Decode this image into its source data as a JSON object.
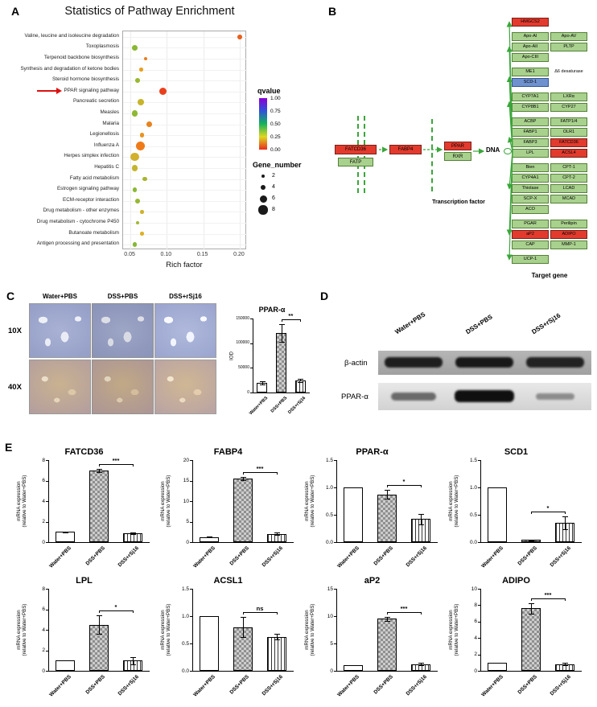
{
  "panels": {
    "a": "A",
    "b": "B",
    "c": "C",
    "d": "D",
    "e": "E"
  },
  "panelB": {
    "membrane": [
      {
        "label": "FATCD36",
        "type": "red"
      },
      {
        "label": "FABP4",
        "type": "red"
      },
      {
        "label": "FATP",
        "type": "green"
      }
    ],
    "tf": [
      {
        "label": "PPAR",
        "type": "red"
      },
      {
        "label": "RXR",
        "type": "green"
      }
    ],
    "dna": "DNA",
    "tf_caption": "Transcription factor",
    "target_caption": "Target gene",
    "groups": [
      {
        "rows": [
          [
            {
              "label": "HMGCS2",
              "type": "red"
            }
          ]
        ]
      },
      {
        "rows": [
          [
            {
              "label": "Apo-AI",
              "type": "green"
            },
            {
              "label": "Apo-AV",
              "type": "green"
            }
          ],
          [
            {
              "label": "Apo-AII",
              "type": "green"
            },
            {
              "label": "PLTP",
              "type": "green"
            }
          ],
          [
            {
              "label": "Apo-CIII",
              "type": "green"
            }
          ]
        ]
      },
      {
        "rows": [
          [
            {
              "label": "ME1",
              "type": "green"
            },
            {
              "label": "Δ6 desaturase",
              "type": "plain"
            }
          ],
          [
            {
              "label": "SCD-1",
              "type": "blue"
            }
          ]
        ]
      },
      {
        "rows": [
          [
            {
              "label": "CYP7A1",
              "type": "green"
            },
            {
              "label": "LXRα",
              "type": "green"
            }
          ],
          [
            {
              "label": "CYP8B1",
              "type": "green"
            },
            {
              "label": "CYP27",
              "type": "green"
            }
          ]
        ]
      },
      {
        "rows": [
          [
            {
              "label": "ACBP",
              "type": "green"
            },
            {
              "label": "FATP1/4",
              "type": "green"
            }
          ],
          [
            {
              "label": "FABP1",
              "type": "green"
            },
            {
              "label": "OLR1",
              "type": "green"
            }
          ],
          [
            {
              "label": "FABP3",
              "type": "green"
            },
            {
              "label": "FATCD36",
              "type": "red"
            }
          ],
          [
            {
              "label": "LPL",
              "type": "green"
            },
            {
              "label": "ACSL4",
              "type": "red"
            }
          ]
        ]
      },
      {
        "rows": [
          [
            {
              "label": "Bien",
              "type": "green"
            },
            {
              "label": "CPT-1",
              "type": "green"
            }
          ],
          [
            {
              "label": "CYP4A1",
              "type": "green"
            },
            {
              "label": "CPT-2",
              "type": "green"
            }
          ],
          [
            {
              "label": "Thiolase",
              "type": "green"
            },
            {
              "label": "LCAD",
              "type": "green"
            }
          ],
          [
            {
              "label": "SCP-X",
              "type": "green"
            },
            {
              "label": "MCAD",
              "type": "green"
            }
          ],
          [
            {
              "label": "ACO",
              "type": "green"
            }
          ]
        ]
      },
      {
        "rows": [
          [
            {
              "label": "PGAR",
              "type": "green"
            },
            {
              "label": "Perilipin",
              "type": "green"
            }
          ],
          [
            {
              "label": "aP2",
              "type": "red"
            },
            {
              "label": "ADIPO",
              "type": "red"
            }
          ],
          [
            {
              "label": "CAP",
              "type": "green"
            },
            {
              "label": "MMP-1",
              "type": "green"
            }
          ]
        ]
      },
      {
        "rows": [
          [
            {
              "label": "UCP-1",
              "type": "green"
            }
          ]
        ]
      }
    ]
  },
  "panelC": {
    "col_headers": [
      "Water+PBS",
      "DSS+PBS",
      "DSS+rSj16"
    ],
    "row_labels": [
      "10X",
      "40X"
    ]
  },
  "panelD": {
    "lane_labels": [
      "Water+PBS",
      "DSS+PBS",
      "DSS+rSj16"
    ],
    "blot_labels": [
      "β-actin",
      "PPAR-α"
    ]
  },
  "chart_data": [
    {
      "id": "pathway-enrichment",
      "type": "scatter",
      "title": "Statistics of Pathway Enrichment",
      "xlabel": "Rich factor",
      "xlim": [
        0.04,
        0.21
      ],
      "xticks": [
        "0.05",
        "0.10",
        "0.15",
        "0.20"
      ],
      "legend": {
        "qvalue_title": "qvalue",
        "qvalue_ticks": [
          "1.00",
          "0.75",
          "0.50",
          "0.25",
          "0.00"
        ],
        "gene_number_title": "Gene_number",
        "gene_number_sizes": [
          2,
          4,
          6,
          8
        ]
      },
      "highlight": "PPAR signaling pathway",
      "points": [
        {
          "pathway": "Valine, leucine and isoleucine degradation",
          "rich_factor": 0.2,
          "gene_number": 3,
          "qvalue": 0.2,
          "color": "#e8601c"
        },
        {
          "pathway": "Toxoplasmosis",
          "rich_factor": 0.056,
          "gene_number": 4,
          "qvalue": 0.45,
          "color": "#8ab833"
        },
        {
          "pathway": "Terpenoid backbone biosynthesis",
          "rich_factor": 0.071,
          "gene_number": 2,
          "qvalue": 0.15,
          "color": "#e87d1e"
        },
        {
          "pathway": "Synthesis and degradation of ketone bodies",
          "rich_factor": 0.065,
          "gene_number": 2,
          "qvalue": 0.18,
          "color": "#e8a01e"
        },
        {
          "pathway": "Steroid hormone biosynthesis",
          "rich_factor": 0.06,
          "gene_number": 3,
          "qvalue": 0.4,
          "color": "#9ab832"
        },
        {
          "pathway": "PPAR signaling pathway",
          "rich_factor": 0.095,
          "gene_number": 6,
          "qvalue": 0.02,
          "color": "#e8401c"
        },
        {
          "pathway": "Pancreatic secretion",
          "rich_factor": 0.064,
          "gene_number": 5,
          "qvalue": 0.3,
          "color": "#c8b42a"
        },
        {
          "pathway": "Measles",
          "rich_factor": 0.056,
          "gene_number": 5,
          "qvalue": 0.42,
          "color": "#8fb832"
        },
        {
          "pathway": "Malaria",
          "rich_factor": 0.076,
          "gene_number": 4,
          "qvalue": 0.12,
          "color": "#e8821e"
        },
        {
          "pathway": "Legionellosis",
          "rich_factor": 0.066,
          "gene_number": 3,
          "qvalue": 0.15,
          "color": "#e8931e"
        },
        {
          "pathway": "Influenza A",
          "rich_factor": 0.064,
          "gene_number": 8,
          "qvalue": 0.08,
          "color": "#ef7a18"
        },
        {
          "pathway": "Herpes simplex infection",
          "rich_factor": 0.056,
          "gene_number": 7,
          "qvalue": 0.22,
          "color": "#d2b02c"
        },
        {
          "pathway": "Hepatitis C",
          "rich_factor": 0.056,
          "gene_number": 5,
          "qvalue": 0.28,
          "color": "#c5b42e"
        },
        {
          "pathway": "Fatty acid metabolism",
          "rich_factor": 0.07,
          "gene_number": 3,
          "qvalue": 0.35,
          "color": "#a6b630"
        },
        {
          "pathway": "Estrogen signaling pathway",
          "rich_factor": 0.056,
          "gene_number": 3,
          "qvalue": 0.45,
          "color": "#8ab833"
        },
        {
          "pathway": "ECM-receptor interaction",
          "rich_factor": 0.06,
          "gene_number": 3,
          "qvalue": 0.4,
          "color": "#97b832"
        },
        {
          "pathway": "Drug metabolism - other enzymes",
          "rich_factor": 0.066,
          "gene_number": 2,
          "qvalue": 0.25,
          "color": "#cdb32c"
        },
        {
          "pathway": "Drug metabolism - cytochrome P450",
          "rich_factor": 0.06,
          "gene_number": 2,
          "qvalue": 0.38,
          "color": "#a0b731"
        },
        {
          "pathway": "Butanoate metabolism",
          "rich_factor": 0.066,
          "gene_number": 2,
          "qvalue": 0.2,
          "color": "#ddb026"
        },
        {
          "pathway": "Antigen processing and presentation",
          "rich_factor": 0.056,
          "gene_number": 3,
          "qvalue": 0.48,
          "color": "#85b934"
        }
      ]
    },
    {
      "id": "ppar-iod",
      "type": "bar",
      "title": "PPAR-α",
      "ylabel": "IOD",
      "ylim": [
        0,
        150000
      ],
      "yticks": [
        "0",
        "50000",
        "100000",
        "150000"
      ],
      "categories": [
        "Water+PBS",
        "DSS+PBS",
        "DSS+rSj16"
      ],
      "values": [
        20000,
        120000,
        25000
      ],
      "errors": [
        3000,
        18000,
        3000
      ],
      "fills": [
        "open",
        "checker",
        "vstripe"
      ],
      "significance": {
        "label": "**",
        "from": 1,
        "to": 2
      }
    },
    {
      "id": "fatcd36",
      "type": "bar",
      "title": "FATCD36",
      "ylabel": [
        "mRNA expression",
        "(relative to Water+PBS)"
      ],
      "ylim": [
        0,
        8
      ],
      "yticks": [
        "0",
        "2",
        "4",
        "6",
        "8"
      ],
      "categories": [
        "Water+PBS",
        "DSS+PBS",
        "DSS+rSj16"
      ],
      "values": [
        1.0,
        7.0,
        0.85
      ],
      "errors": [
        0.05,
        0.15,
        0.1
      ],
      "fills": [
        "open",
        "checker",
        "vstripe"
      ],
      "significance": {
        "label": "***",
        "from": 1,
        "to": 2
      }
    },
    {
      "id": "fabp4",
      "type": "bar",
      "title": "FABP4",
      "ylabel": [
        "mRNA expression",
        "(relative to Water+PBS)"
      ],
      "ylim": [
        0,
        20
      ],
      "yticks": [
        "0",
        "5",
        "10",
        "15",
        "20"
      ],
      "categories": [
        "Water+PBS",
        "DSS+PBS",
        "DSS+rSj16"
      ],
      "values": [
        1.2,
        15.5,
        2.0
      ],
      "errors": [
        0.1,
        0.4,
        0.3
      ],
      "fills": [
        "open",
        "checker",
        "vstripe"
      ],
      "significance": {
        "label": "***",
        "from": 1,
        "to": 2
      }
    },
    {
      "id": "ppar-alpha",
      "type": "bar",
      "title": "PPAR-α",
      "ylabel": [
        "mRNA expression",
        "(relative to Water+PBS)"
      ],
      "ylim": [
        0,
        1.5
      ],
      "yticks": [
        "0.0",
        "0.5",
        "1.0",
        "1.5"
      ],
      "categories": [
        "Water+PBS",
        "DSS+PBS",
        "DSS+rSj16"
      ],
      "values": [
        1.0,
        0.87,
        0.42
      ],
      "errors": [
        0,
        0.08,
        0.1
      ],
      "fills": [
        "open",
        "checker",
        "vstripe"
      ],
      "significance": {
        "label": "*",
        "from": 1,
        "to": 2
      }
    },
    {
      "id": "scd1",
      "type": "bar",
      "title": "SCD1",
      "ylabel": [
        "mRNA expression",
        "(relative to Water+PBS)"
      ],
      "ylim": [
        0,
        1.5
      ],
      "yticks": [
        "0.0",
        "0.5",
        "1.0",
        "1.5"
      ],
      "categories": [
        "Water+PBS",
        "DSS+PBS",
        "DSS+rSj16"
      ],
      "values": [
        1.0,
        0.04,
        0.35
      ],
      "errors": [
        0,
        0.01,
        0.12
      ],
      "fills": [
        "open",
        "checker",
        "vstripe"
      ],
      "significance": {
        "label": "*",
        "from": 1,
        "to": 2
      }
    },
    {
      "id": "lpl",
      "type": "bar",
      "title": "LPL",
      "ylabel": [
        "mRNA expression",
        "(relative to Water+PBS)"
      ],
      "ylim": [
        0,
        8
      ],
      "yticks": [
        "0",
        "2",
        "4",
        "6",
        "8"
      ],
      "categories": [
        "Water+PBS",
        "DSS+PBS",
        "DSS+rSj16"
      ],
      "values": [
        1.0,
        4.5,
        1.0
      ],
      "errors": [
        0,
        0.9,
        0.35
      ],
      "fills": [
        "open",
        "checker",
        "vstripe"
      ],
      "significance": {
        "label": "*",
        "from": 1,
        "to": 2
      }
    },
    {
      "id": "acsl1",
      "type": "bar",
      "title": "ACSL1",
      "ylabel": [
        "mRNA expression",
        "(relative to Water+PBS)"
      ],
      "ylim": [
        0,
        1.5
      ],
      "yticks": [
        "0.0",
        "0.5",
        "1.0",
        "1.5"
      ],
      "categories": [
        "Water+PBS",
        "DSS+PBS",
        "DSS+rSj16"
      ],
      "values": [
        1.0,
        0.8,
        0.62
      ],
      "errors": [
        0,
        0.18,
        0.05
      ],
      "fills": [
        "open",
        "checker",
        "vstripe"
      ],
      "significance": {
        "label": "ns",
        "from": 1,
        "to": 2
      }
    },
    {
      "id": "ap2",
      "type": "bar",
      "title": "aP2",
      "ylabel": [
        "mRNA expression",
        "(relative to Water+PBS)"
      ],
      "ylim": [
        0,
        15
      ],
      "yticks": [
        "0",
        "5",
        "10",
        "15"
      ],
      "categories": [
        "Water+PBS",
        "DSS+PBS",
        "DSS+rSj16"
      ],
      "values": [
        1.0,
        9.5,
        1.2
      ],
      "errors": [
        0,
        0.4,
        0.2
      ],
      "fills": [
        "open",
        "checker",
        "vstripe"
      ],
      "significance": {
        "label": "***",
        "from": 1,
        "to": 2
      }
    },
    {
      "id": "adipo",
      "type": "bar",
      "title": "ADIPO",
      "ylabel": [
        "mRNA expression",
        "(relative to Water+PBS)"
      ],
      "ylim": [
        0,
        10
      ],
      "yticks": [
        "0",
        "2",
        "4",
        "6",
        "8",
        "10"
      ],
      "categories": [
        "Water+PBS",
        "DSS+PBS",
        "DSS+rSj16"
      ],
      "values": [
        1.0,
        7.6,
        0.8
      ],
      "errors": [
        0,
        0.6,
        0.15
      ],
      "fills": [
        "open",
        "checker",
        "vstripe"
      ],
      "significance": {
        "label": "***",
        "from": 1,
        "to": 2
      }
    }
  ]
}
